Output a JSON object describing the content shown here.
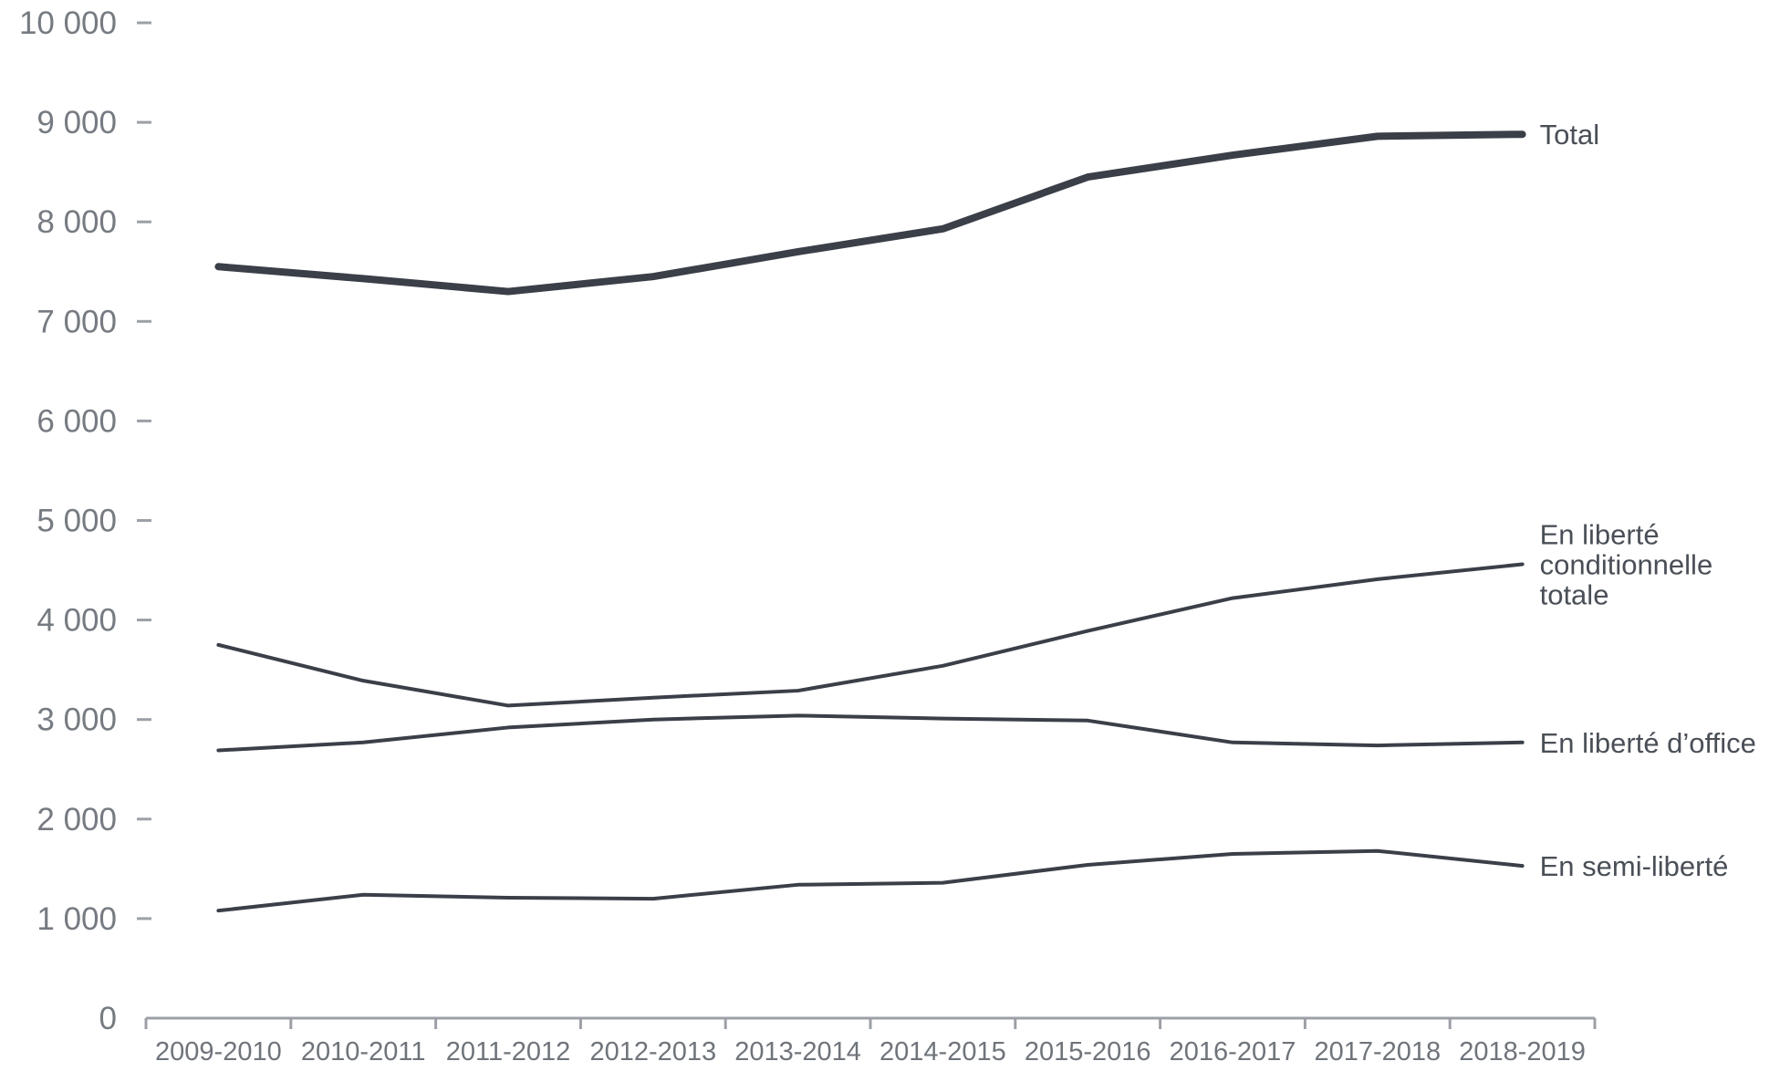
{
  "chart_data": {
    "type": "line",
    "categories": [
      "2009-2010",
      "2010-2011",
      "2011-2012",
      "2012-2013",
      "2013-2014",
      "2014-2015",
      "2015-2016",
      "2016-2017",
      "2017-2018",
      "2018-2019"
    ],
    "ylim": [
      0,
      10000
    ],
    "yticks": [
      0,
      1000,
      2000,
      3000,
      4000,
      5000,
      6000,
      7000,
      8000,
      9000,
      10000
    ],
    "ytick_labels": [
      "0",
      "1 000",
      "2 000",
      "3 000",
      "4 000",
      "5 000",
      "6 000",
      "7 000",
      "8 000",
      "9 000",
      "10 000"
    ],
    "grid": false,
    "legend": "direct labels at right end of lines",
    "title": "",
    "xlabel": "",
    "ylabel": "",
    "series": [
      {
        "key": "total",
        "name": "Total",
        "label_lines": [
          "Total"
        ],
        "values": [
          7550,
          7430,
          7300,
          7450,
          7700,
          7930,
          8450,
          8670,
          8860,
          8880
        ],
        "color": "#3a3f48",
        "emphasis": true
      },
      {
        "key": "conditionnelle",
        "name": "En liberté conditionnelle totale",
        "label_lines": [
          "En liberté",
          "conditionnelle",
          "totale"
        ],
        "values": [
          3750,
          3390,
          3140,
          3220,
          3290,
          3540,
          3890,
          4220,
          4410,
          4560
        ],
        "color": "#3a3f48",
        "emphasis": false
      },
      {
        "key": "office",
        "name": "En liberté d’office",
        "label_lines": [
          "En liberté d’office"
        ],
        "values": [
          2690,
          2770,
          2920,
          3000,
          3040,
          3010,
          2990,
          2770,
          2740,
          2770
        ],
        "color": "#3a3f48",
        "emphasis": false
      },
      {
        "key": "semi",
        "name": "En semi-liberté",
        "label_lines": [
          "En semi-liberté"
        ],
        "values": [
          1080,
          1240,
          1210,
          1200,
          1340,
          1360,
          1540,
          1650,
          1680,
          1530
        ],
        "color": "#3a3f48",
        "emphasis": false
      }
    ]
  }
}
